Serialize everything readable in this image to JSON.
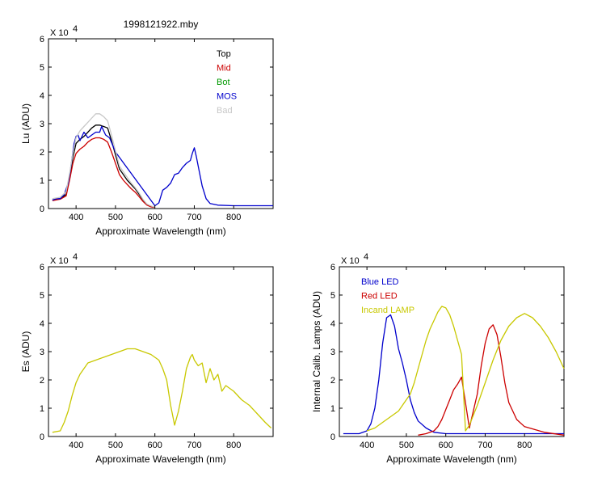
{
  "title": "1998121922.mby",
  "chart_data": [
    {
      "id": "lu",
      "type": "line",
      "xlabel": "Approximate Wavelength (nm)",
      "ylabel": "Lu (ADU)",
      "exponent": {
        "base": "X 10",
        "power": "4"
      },
      "xlim": [
        330,
        900
      ],
      "ylim": [
        0,
        6
      ],
      "xticks": [
        400,
        500,
        600,
        700,
        800
      ],
      "yticks": [
        0,
        1,
        2,
        3,
        4,
        5,
        6
      ],
      "legend_position": "top-right",
      "series": [
        {
          "name": "Top",
          "color": "#000000",
          "x": [
            340,
            360,
            375,
            385,
            392,
            400,
            410,
            420,
            430,
            440,
            450,
            460,
            470,
            480,
            490,
            500,
            510,
            520,
            530,
            540,
            550,
            560,
            570,
            580,
            590,
            600
          ],
          "y": [
            0.3,
            0.35,
            0.5,
            1.2,
            1.8,
            2.3,
            2.45,
            2.55,
            2.7,
            2.85,
            2.95,
            2.95,
            2.9,
            2.85,
            2.4,
            1.9,
            1.4,
            1.2,
            1.0,
            0.85,
            0.7,
            0.5,
            0.3,
            0.15,
            0.08,
            0.05
          ]
        },
        {
          "name": "Mid",
          "color": "#cc0000",
          "x": [
            340,
            360,
            375,
            385,
            392,
            400,
            410,
            420,
            430,
            440,
            450,
            460,
            470,
            480,
            490,
            500,
            510,
            520,
            530,
            540,
            550,
            560,
            570,
            580,
            590,
            600
          ],
          "y": [
            0.28,
            0.33,
            0.45,
            1.1,
            1.6,
            1.95,
            2.1,
            2.2,
            2.35,
            2.45,
            2.5,
            2.5,
            2.45,
            2.35,
            2.0,
            1.6,
            1.2,
            1.0,
            0.85,
            0.7,
            0.58,
            0.42,
            0.25,
            0.12,
            0.06,
            0.04
          ]
        },
        {
          "name": "Bot",
          "color": "#009900",
          "x": [],
          "y": []
        },
        {
          "name": "MOS",
          "color": "#0000cc",
          "x": [
            340,
            350,
            360,
            370,
            380,
            385,
            390,
            395,
            400,
            405,
            410,
            420,
            430,
            440,
            450,
            460,
            465,
            475,
            485,
            500,
            600,
            610,
            620,
            630,
            640,
            650,
            660,
            670,
            680,
            690,
            695,
            700,
            705,
            710,
            720,
            730,
            740,
            760,
            800,
            850,
            900
          ],
          "y": [
            0.3,
            0.35,
            0.35,
            0.5,
            0.9,
            1.3,
            1.8,
            2.3,
            2.55,
            2.6,
            2.4,
            2.7,
            2.5,
            2.6,
            2.7,
            2.7,
            2.9,
            2.6,
            2.5,
            2.0,
            0.1,
            0.2,
            0.65,
            0.75,
            0.9,
            1.2,
            1.25,
            1.45,
            1.6,
            1.7,
            1.95,
            2.15,
            1.85,
            1.5,
            0.8,
            0.35,
            0.18,
            0.12,
            0.1,
            0.1,
            0.1
          ]
        },
        {
          "name": "Bad",
          "color": "#c8c8c8",
          "x": [
            340,
            360,
            375,
            385,
            392,
            400,
            410,
            420,
            430,
            440,
            450,
            460,
            470,
            480,
            490,
            500,
            510,
            520,
            530,
            540,
            550,
            560,
            570,
            580,
            590,
            600
          ],
          "y": [
            0.35,
            0.4,
            0.6,
            1.35,
            1.95,
            2.5,
            2.75,
            2.9,
            3.05,
            3.2,
            3.35,
            3.35,
            3.25,
            3.1,
            2.6,
            2.05,
            1.5,
            1.3,
            1.1,
            0.9,
            0.74,
            0.55,
            0.32,
            0.16,
            0.09,
            0.05
          ]
        }
      ]
    },
    {
      "id": "es",
      "type": "line",
      "xlabel": "Approximate Wavelength (nm)",
      "ylabel": "Es (ADU)",
      "exponent": {
        "base": "X 10",
        "power": "4"
      },
      "xlim": [
        330,
        900
      ],
      "ylim": [
        0,
        6
      ],
      "xticks": [
        400,
        500,
        600,
        700,
        800
      ],
      "yticks": [
        0,
        1,
        2,
        3,
        4,
        5,
        6
      ],
      "series": [
        {
          "name": "",
          "color": "#c8c800",
          "x": [
            340,
            360,
            370,
            380,
            390,
            400,
            410,
            420,
            430,
            450,
            470,
            490,
            510,
            530,
            550,
            570,
            590,
            600,
            610,
            620,
            630,
            640,
            650,
            660,
            670,
            680,
            690,
            695,
            700,
            710,
            720,
            730,
            740,
            750,
            760,
            770,
            780,
            800,
            820,
            840,
            860,
            880,
            895
          ],
          "y": [
            0.15,
            0.2,
            0.5,
            0.9,
            1.45,
            1.9,
            2.2,
            2.4,
            2.6,
            2.7,
            2.8,
            2.9,
            3.0,
            3.1,
            3.1,
            3.0,
            2.9,
            2.8,
            2.7,
            2.4,
            2.0,
            1.1,
            0.4,
            0.9,
            1.6,
            2.4,
            2.8,
            2.9,
            2.7,
            2.5,
            2.6,
            1.9,
            2.4,
            2.0,
            2.2,
            1.6,
            1.8,
            1.6,
            1.3,
            1.1,
            0.8,
            0.5,
            0.3
          ]
        }
      ]
    },
    {
      "id": "lamps",
      "type": "line",
      "xlabel": "Approximate Wavelength (nm)",
      "ylabel": "Internal Calib. Lamps (ADU)",
      "exponent": {
        "base": "X 10",
        "power": "4"
      },
      "xlim": [
        330,
        900
      ],
      "ylim": [
        0,
        6
      ],
      "xticks": [
        400,
        500,
        600,
        700,
        800
      ],
      "yticks": [
        0,
        1,
        2,
        3,
        4,
        5,
        6
      ],
      "legend_position": "top-left",
      "series": [
        {
          "name": "Blue LED",
          "color": "#0000cc",
          "x": [
            340,
            380,
            400,
            410,
            420,
            430,
            440,
            450,
            460,
            470,
            480,
            490,
            500,
            510,
            520,
            530,
            550,
            570,
            600,
            650,
            700,
            800,
            900
          ],
          "y": [
            0.1,
            0.1,
            0.2,
            0.45,
            1.0,
            2.0,
            3.3,
            4.2,
            4.3,
            3.9,
            3.1,
            2.6,
            2.0,
            1.3,
            0.85,
            0.55,
            0.3,
            0.15,
            0.1,
            0.1,
            0.1,
            0.1,
            0.1
          ]
        },
        {
          "name": "Red LED",
          "color": "#cc0000",
          "x": [
            530,
            550,
            570,
            580,
            590,
            600,
            610,
            620,
            630,
            640,
            660,
            680,
            690,
            700,
            710,
            720,
            730,
            740,
            750,
            760,
            780,
            800,
            850,
            900
          ],
          "y": [
            0.05,
            0.1,
            0.2,
            0.35,
            0.6,
            0.95,
            1.3,
            1.65,
            1.85,
            2.1,
            0.3,
            1.5,
            2.5,
            3.3,
            3.8,
            3.95,
            3.6,
            2.8,
            1.9,
            1.2,
            0.6,
            0.35,
            0.15,
            0.05
          ]
        },
        {
          "name": "Incand LAMP",
          "color": "#c8c800",
          "x": [
            400,
            420,
            440,
            460,
            480,
            500,
            510,
            520,
            530,
            540,
            550,
            560,
            570,
            580,
            590,
            600,
            610,
            620,
            630,
            640,
            650,
            660,
            680,
            700,
            720,
            740,
            760,
            780,
            800,
            820,
            840,
            860,
            880,
            900
          ],
          "y": [
            0.2,
            0.3,
            0.5,
            0.7,
            0.9,
            1.3,
            1.5,
            1.9,
            2.4,
            2.9,
            3.4,
            3.8,
            4.1,
            4.4,
            4.6,
            4.55,
            4.3,
            3.9,
            3.4,
            2.9,
            0.2,
            0.4,
            1.1,
            1.9,
            2.7,
            3.4,
            3.9,
            4.2,
            4.35,
            4.2,
            3.9,
            3.5,
            3.0,
            2.4
          ]
        }
      ]
    }
  ]
}
